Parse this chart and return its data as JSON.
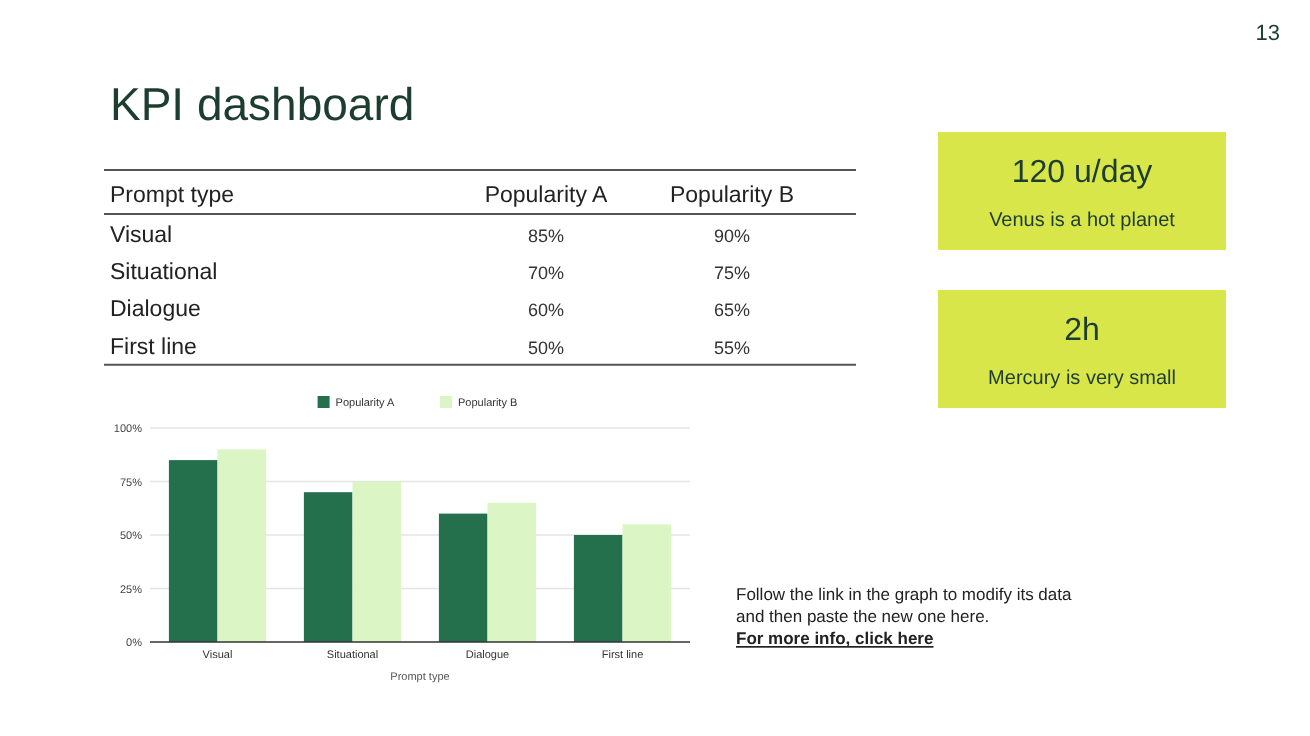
{
  "chart_data": [
    {
      "type": "bar",
      "title": "KPI dashboard",
      "xlabel": "Prompt type",
      "categories": [
        "Visual",
        "Situational",
        "Dialogue",
        "First line"
      ],
      "series": [
        {
          "name": "Popularity A",
          "color": "#24704c",
          "values": [
            85,
            70,
            60,
            50
          ]
        },
        {
          "name": "Popularity B",
          "color": "#dcf5c4",
          "values": [
            90,
            75,
            65,
            55
          ]
        }
      ],
      "ylim": [
        0,
        100
      ],
      "yticks": [
        {
          "value": 0,
          "label": "0%"
        },
        {
          "value": 25,
          "label": "25%"
        },
        {
          "value": 50,
          "label": "50%"
        },
        {
          "value": 75,
          "label": "75%"
        },
        {
          "value": 100,
          "label": "100%"
        }
      ],
      "grid": "y",
      "legend": "top",
      "annotations": [
        "13",
        "Follow the link in the graph to modify its data and then paste the new one here.",
        "For more info, click here"
      ]
    },
    {
      "type": "other",
      "xlabel": "Prompt type",
      "categories": [
        "Visual",
        "Situational",
        "Dialogue",
        "First line"
      ],
      "series": [
        {
          "name": "Popularity A",
          "values": [
            85,
            70,
            60,
            50
          ],
          "value_labels": [
            "85%",
            "70%",
            "60%",
            "50%"
          ]
        },
        {
          "name": "Popularity B",
          "values": [
            90,
            75,
            65,
            55
          ],
          "value_labels": [
            "90%",
            "75%",
            "65%",
            "55%"
          ]
        }
      ]
    },
    {
      "type": "other",
      "title": "120 u/day",
      "subtitle": "Venus is a hot planet"
    },
    {
      "type": "other",
      "title": "2h",
      "subtitle": "Mercury is very small"
    }
  ]
}
